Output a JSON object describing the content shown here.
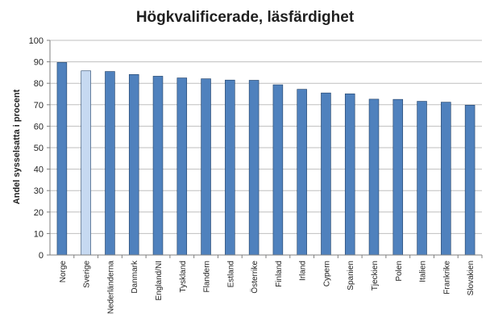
{
  "colors": {
    "bar": "#4f81bd",
    "bar_highlight": "#c6d9f1",
    "bar_stroke": "#1f3f66",
    "grid": "#bfbfbf",
    "axis": "#7f7f7f"
  },
  "chart_data": {
    "type": "bar",
    "title": "Högkvalificerade,  läsfärdighet",
    "xlabel": "",
    "ylabel": "Andel sysselsatta i procent",
    "ylim": [
      0,
      100
    ],
    "yticks": [
      0,
      10,
      20,
      30,
      40,
      50,
      60,
      70,
      80,
      90,
      100
    ],
    "grid": true,
    "categories": [
      "Norge",
      "Sverige",
      "Nederländerna",
      "Danmark",
      "England/NI",
      "Tyskland",
      "Flandern",
      "Estland",
      "Österrike",
      "Finland",
      "Irland",
      "Cypern",
      "Spanien",
      "Tjeckien",
      "Polen",
      "Italien",
      "Frankrike",
      "Slovakien"
    ],
    "values": [
      89.7,
      85.8,
      85.5,
      84.1,
      83.3,
      82.5,
      82.1,
      81.5,
      81.4,
      79.3,
      77.2,
      75.5,
      75.1,
      72.6,
      72.5,
      71.6,
      71.2,
      69.8
    ],
    "highlight_category": "Sverige"
  }
}
